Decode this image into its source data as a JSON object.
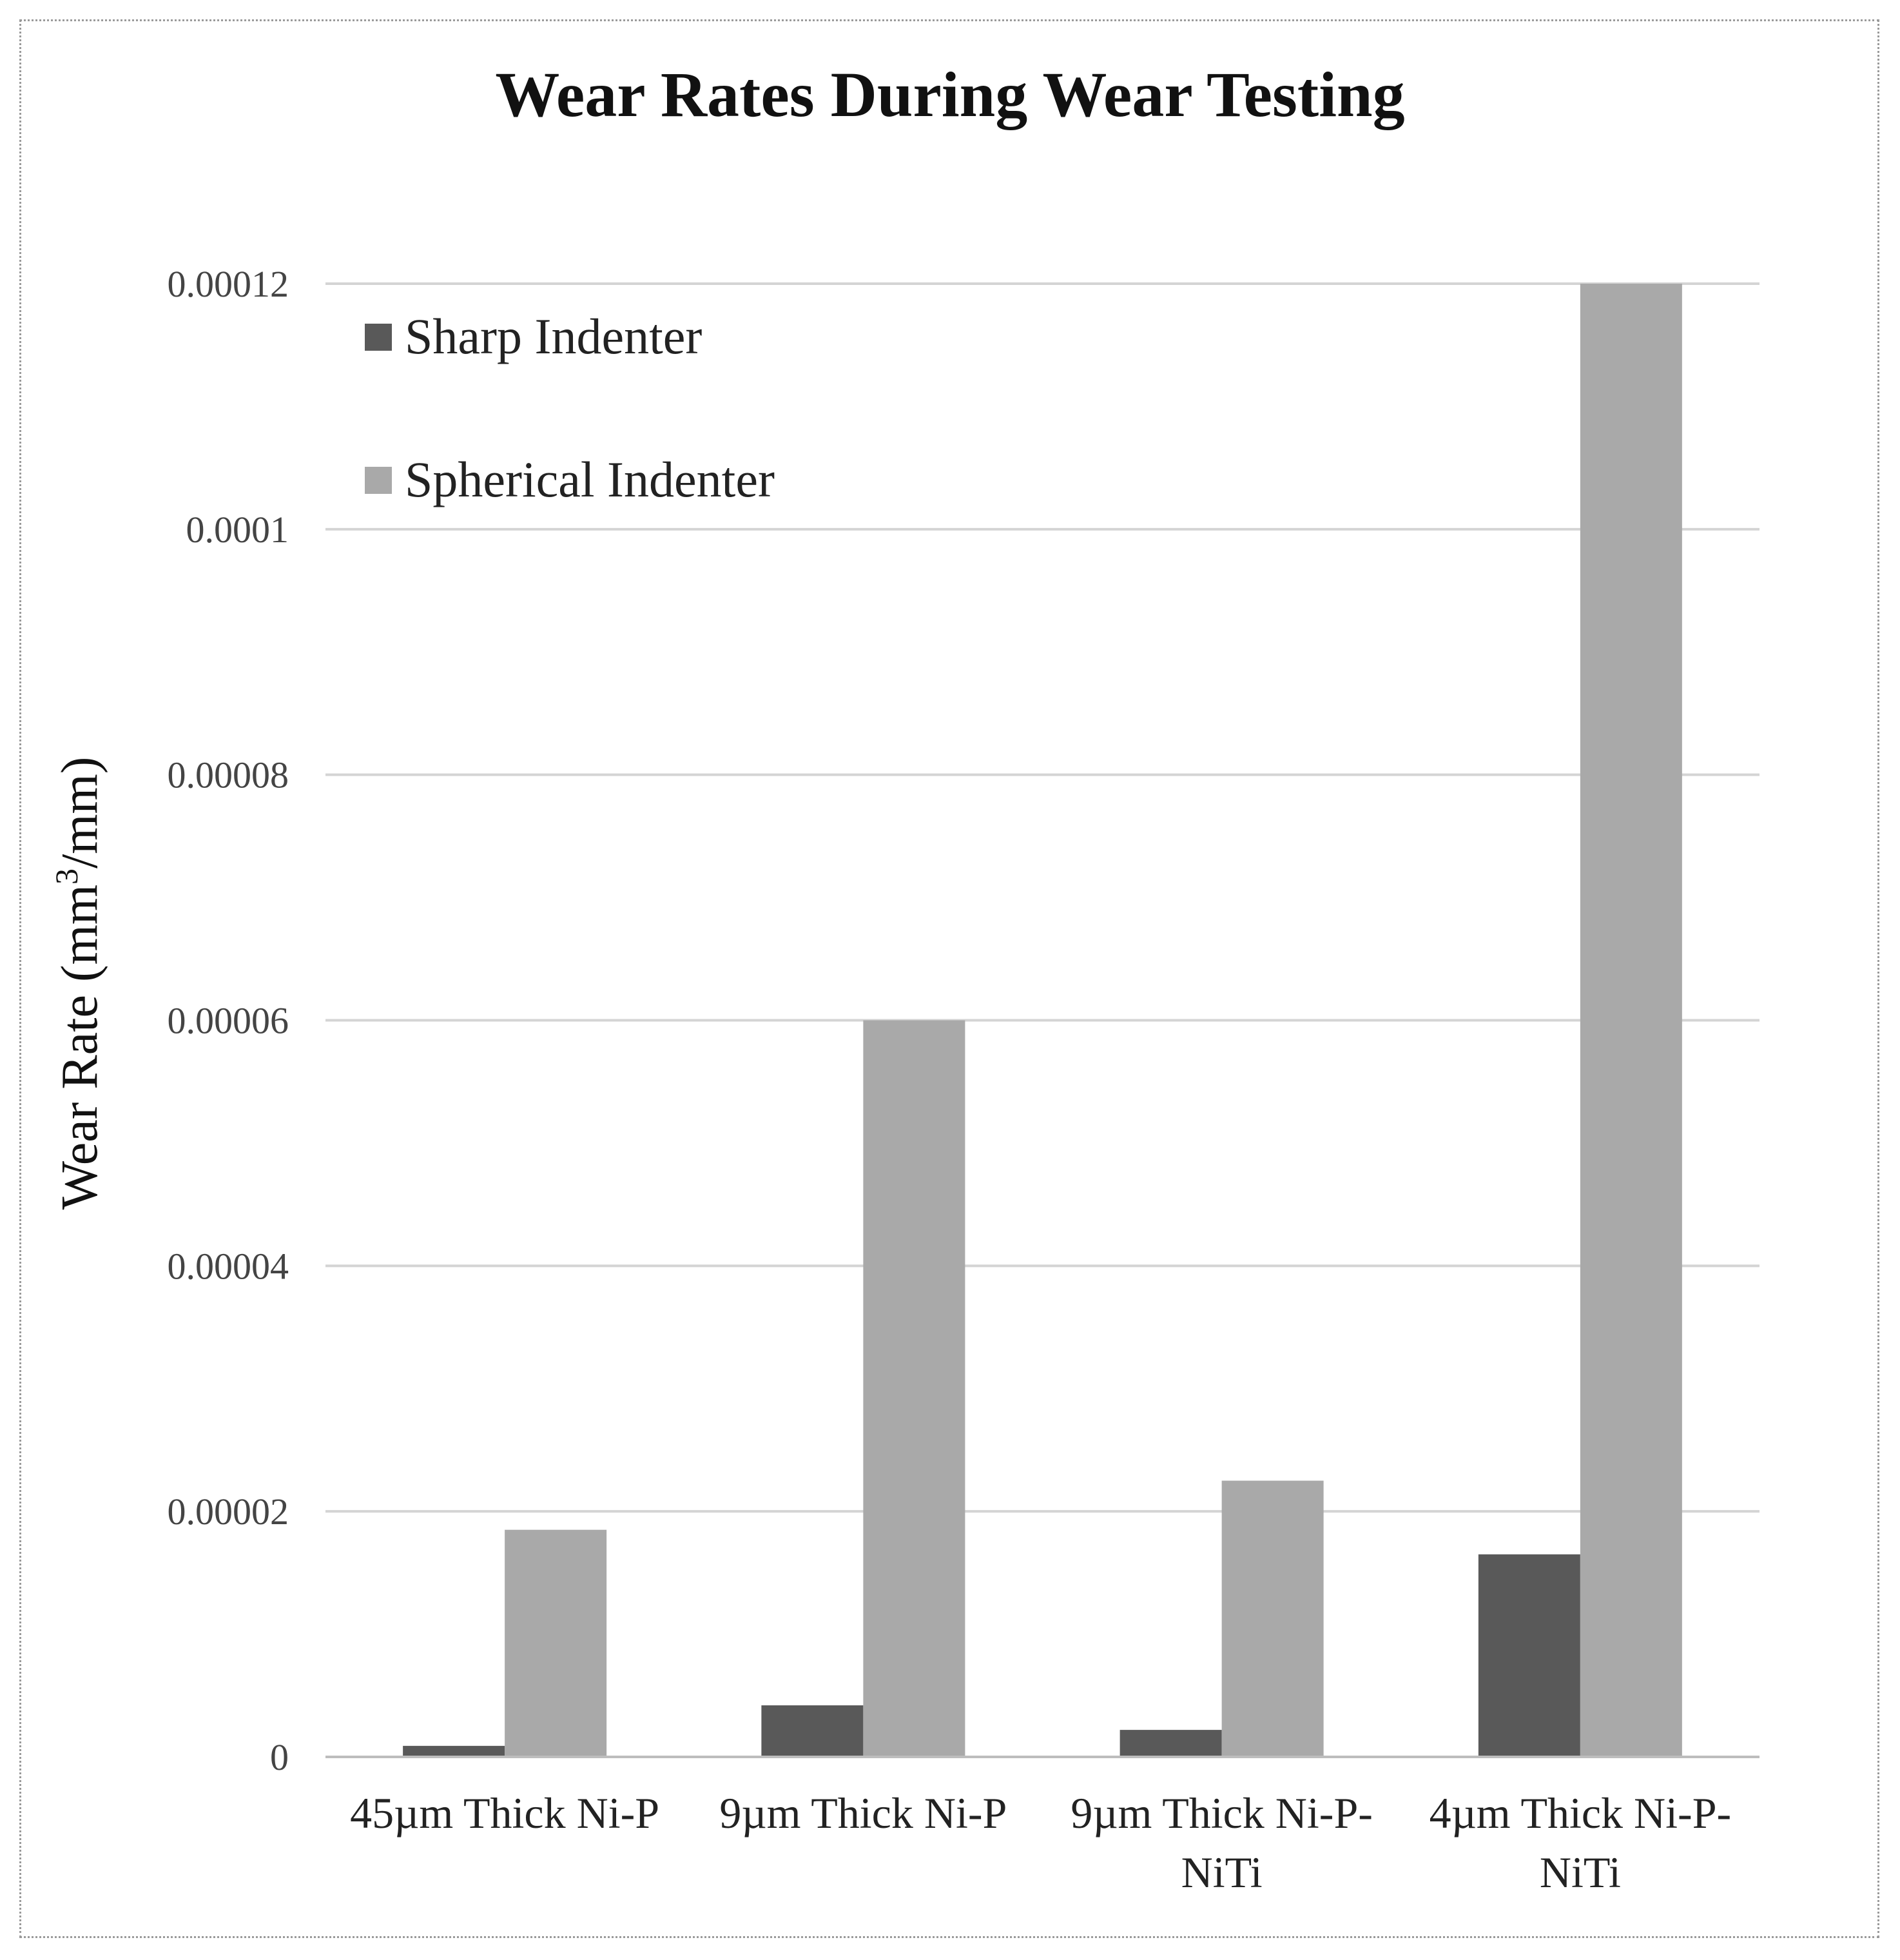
{
  "chart_data": {
    "type": "bar",
    "title": "Wear Rates During Wear Testing",
    "xlabel": "",
    "ylabel": "Wear Rate (mm³/mm)",
    "ylim": [
      0,
      0.00012
    ],
    "yticks": [
      0,
      2e-05,
      4e-05,
      6e-05,
      8e-05,
      0.0001,
      0.00012
    ],
    "ytick_labels": [
      "0",
      "0.00002",
      "0.00004",
      "0.00006",
      "0.00008",
      "0.0001",
      "0.00012"
    ],
    "grid": true,
    "legend_position": "top-left",
    "categories": [
      [
        "45µm Thick Ni-P"
      ],
      [
        "9µm Thick Ni-P"
      ],
      [
        "9µm Thick Ni-P-",
        "NiTi"
      ],
      [
        "4µm Thick Ni-P-",
        "NiTi"
      ]
    ],
    "series": [
      {
        "name": "Sharp Indenter",
        "color": "#595959",
        "values": [
          9e-07,
          4.2e-06,
          2.2e-06,
          1.65e-05
        ]
      },
      {
        "name": "Spherical Indenter",
        "color": "#a9a9a9",
        "values": [
          1.85e-05,
          6e-05,
          2.25e-05,
          0.00012
        ]
      }
    ]
  }
}
